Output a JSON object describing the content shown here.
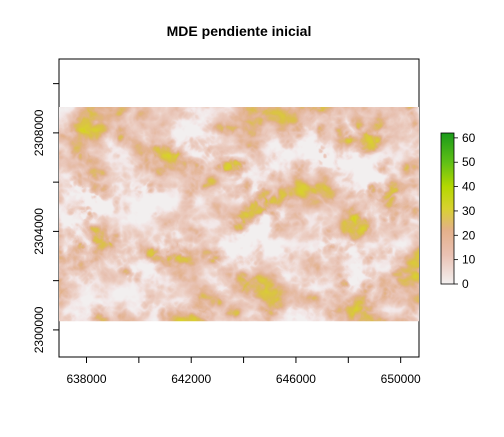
{
  "map": {
    "title": "MDE pendiente inicial",
    "x_axis": {
      "ticks": [
        638000,
        640000,
        642000,
        644000,
        646000,
        648000,
        650000
      ],
      "labels": [
        "638000",
        "642000",
        "646000",
        "650000"
      ],
      "label_values": [
        638000,
        642000,
        646000,
        650000
      ],
      "range": [
        636950,
        650700
      ]
    },
    "y_axis": {
      "ticks": [
        2300000,
        2302000,
        2304000,
        2306000,
        2308000,
        2310000
      ],
      "labels": [
        "2300000",
        "2304000",
        "2308000"
      ],
      "label_values": [
        2300000,
        2304000,
        2308000
      ],
      "range": [
        2298900,
        2311000
      ]
    },
    "raster_extent": {
      "x": [
        636950,
        650700
      ],
      "y": [
        2300350,
        2309050
      ]
    },
    "colorbar": {
      "min": 0,
      "max": 62,
      "ticks": [
        "0",
        "10",
        "20",
        "30",
        "40",
        "50",
        "60"
      ],
      "tick_values": [
        0,
        10,
        20,
        30,
        40,
        50,
        60
      ],
      "stops": [
        {
          "value": 0,
          "color": "#f3f0f0"
        },
        {
          "value": 12,
          "color": "#eac1b3"
        },
        {
          "value": 22,
          "color": "#e4b08a"
        },
        {
          "value": 31,
          "color": "#d8d230"
        },
        {
          "value": 40,
          "color": "#b4d800"
        },
        {
          "value": 50,
          "color": "#5fc016"
        },
        {
          "value": 62,
          "color": "#1a9a1a"
        }
      ]
    }
  }
}
